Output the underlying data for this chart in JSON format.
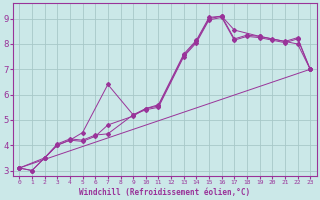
{
  "xlabel": "Windchill (Refroidissement éolien,°C)",
  "ylabel": "",
  "background_color": "#cbe8e8",
  "line_color": "#993399",
  "grid_color": "#a8c8c8",
  "xlim": [
    -0.5,
    23.5
  ],
  "ylim": [
    2.8,
    9.6
  ],
  "xticks": [
    0,
    1,
    2,
    3,
    4,
    5,
    6,
    7,
    8,
    9,
    10,
    11,
    12,
    13,
    14,
    15,
    16,
    17,
    18,
    19,
    20,
    21,
    22,
    23
  ],
  "yticks": [
    3,
    4,
    5,
    6,
    7,
    8,
    9
  ],
  "lines": [
    {
      "x": [
        0,
        1,
        2,
        3,
        4,
        5,
        6,
        7,
        9,
        10,
        11,
        13,
        14,
        15,
        16,
        17,
        18,
        19,
        20,
        21,
        22,
        23
      ],
      "y": [
        3.1,
        3.0,
        3.5,
        4.0,
        4.2,
        4.15,
        4.35,
        4.8,
        5.15,
        5.45,
        5.55,
        7.55,
        8.1,
        9.0,
        9.1,
        8.2,
        8.35,
        8.3,
        8.2,
        8.1,
        8.25,
        7.0
      ]
    },
    {
      "x": [
        0,
        2,
        3,
        4,
        5,
        7,
        9,
        10,
        11,
        13,
        14,
        15,
        16,
        17,
        19,
        22,
        23
      ],
      "y": [
        3.1,
        3.5,
        4.0,
        4.2,
        4.5,
        6.4,
        5.2,
        5.45,
        5.6,
        7.6,
        8.15,
        9.05,
        9.1,
        8.55,
        8.3,
        8.0,
        7.0
      ]
    },
    {
      "x": [
        0,
        1,
        2,
        3,
        4,
        5,
        6,
        7,
        9,
        10,
        11,
        13,
        14,
        15,
        16,
        17,
        18,
        19,
        20,
        21,
        22,
        23
      ],
      "y": [
        3.1,
        3.0,
        3.5,
        4.05,
        4.25,
        4.2,
        4.4,
        4.45,
        5.2,
        5.4,
        5.5,
        7.5,
        8.05,
        8.95,
        9.05,
        8.15,
        8.3,
        8.25,
        8.15,
        8.05,
        8.2,
        7.0
      ]
    },
    {
      "x": [
        0,
        23
      ],
      "y": [
        3.1,
        7.0
      ]
    }
  ]
}
